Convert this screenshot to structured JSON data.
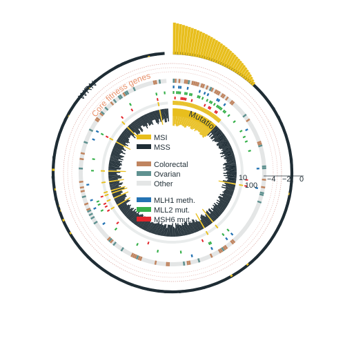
{
  "chart_data": {
    "type": "circos",
    "arc_labels": {
      "gene": "WRN",
      "gene_set": "Core fitness genes"
    },
    "dependency_scale": {
      "ticks": [
        "−4",
        "−2",
        "0"
      ]
    },
    "mutation_rate": {
      "label": "Mutation rate (per Mb)",
      "ticks": [
        "10",
        "100"
      ]
    },
    "legend": [
      {
        "label": "MSI",
        "color": "#e8be1c"
      },
      {
        "label": "MSS",
        "color": "#1f2d35"
      },
      {
        "label": "Colorectal",
        "color": "#c0845f"
      },
      {
        "label": "Ovarian",
        "color": "#5f9190"
      },
      {
        "label": "Other",
        "color": "#e4e6e6"
      },
      {
        "label": "MLH1 meth.",
        "color": "#2473b3"
      },
      {
        "label": "MLL2 mut.",
        "color": "#36b04a"
      },
      {
        "label": "MSH6 mut.",
        "color": "#e3262c"
      }
    ],
    "colors": {
      "msi": "#e8be1c",
      "mss": "#1f2d35",
      "core_arc": "#e8916b",
      "guide_ring": "#d8a09a"
    },
    "cell_lines_approx": 300,
    "msi_fraction_approx": 0.12
  }
}
